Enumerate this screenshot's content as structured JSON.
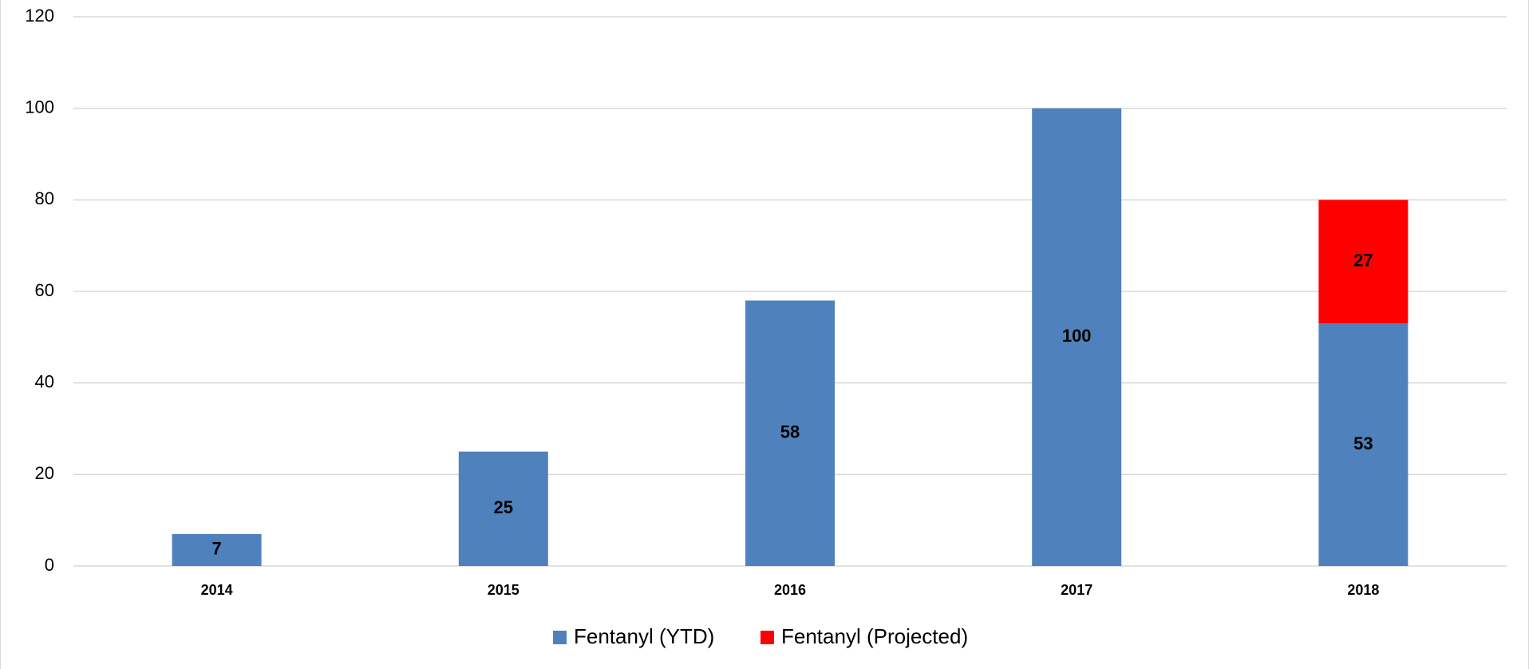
{
  "chart_data": {
    "type": "stacked_bar",
    "categories": [
      "2014",
      "2015",
      "2016",
      "2017",
      "2018"
    ],
    "series": [
      {
        "name": "Fentanyl (YTD)",
        "color": "#4f81bd",
        "values": [
          7,
          25,
          58,
          100,
          53
        ]
      },
      {
        "name": "Fentanyl (Projected)",
        "color": "#ff0000",
        "values": [
          null,
          null,
          null,
          null,
          27
        ]
      }
    ],
    "ylim": [
      0,
      120
    ],
    "yticks": [
      0,
      20,
      40,
      60,
      80,
      100,
      120
    ],
    "grid": true,
    "legend": "bottom"
  }
}
